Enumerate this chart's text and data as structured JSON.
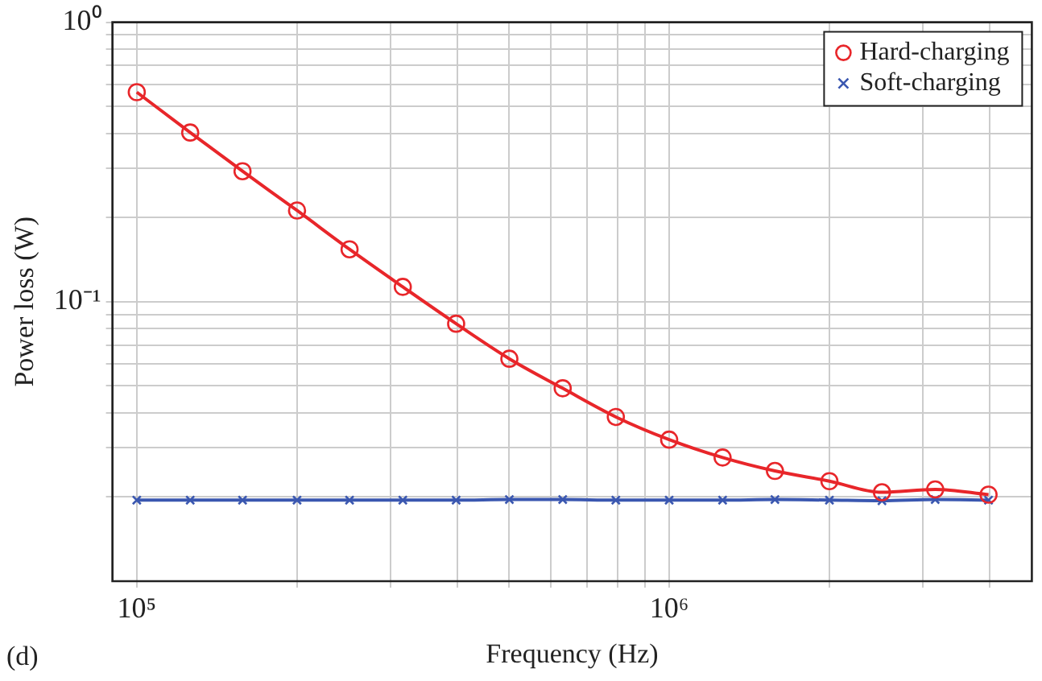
{
  "chart_data": {
    "type": "line",
    "xlabel": "Frequency (Hz)",
    "ylabel": "Power loss (W)",
    "annotations": [
      "(d)"
    ],
    "log": "xy",
    "grid": true,
    "legend": "top right",
    "xlim": [
      90000,
      4800000
    ],
    "ylim": [
      0.01,
      1
    ],
    "xticks": [
      {
        "value": 100000,
        "label": "10⁵"
      },
      {
        "value": 200000,
        "label": null
      },
      {
        "value": 300000,
        "label": null
      },
      {
        "value": 400000,
        "label": null
      },
      {
        "value": 500000,
        "label": null
      },
      {
        "value": 600000,
        "label": null
      },
      {
        "value": 700000,
        "label": null
      },
      {
        "value": 800000,
        "label": null
      },
      {
        "value": 900000,
        "label": null
      },
      {
        "value": 1000000,
        "label": "10⁶"
      },
      {
        "value": 2000000,
        "label": null
      },
      {
        "value": 3000000,
        "label": null
      },
      {
        "value": 4000000,
        "label": null
      }
    ],
    "yticks": [
      {
        "value": 0.02,
        "label": null
      },
      {
        "value": 0.03,
        "label": null
      },
      {
        "value": 0.04,
        "label": null
      },
      {
        "value": 0.05,
        "label": null
      },
      {
        "value": 0.06,
        "label": null
      },
      {
        "value": 0.07,
        "label": null
      },
      {
        "value": 0.08,
        "label": null
      },
      {
        "value": 0.09,
        "label": null
      },
      {
        "value": 0.1,
        "label": "10⁻¹"
      },
      {
        "value": 0.2,
        "label": null
      },
      {
        "value": 0.3,
        "label": null
      },
      {
        "value": 0.4,
        "label": null
      },
      {
        "value": 0.5,
        "label": null
      },
      {
        "value": 0.6,
        "label": null
      },
      {
        "value": 0.7,
        "label": null
      },
      {
        "value": 0.8,
        "label": null
      },
      {
        "value": 0.9,
        "label": null
      },
      {
        "value": 1,
        "label": "10⁰"
      }
    ],
    "x": [
      100000,
      126000,
      158000,
      200000,
      251000,
      316000,
      398000,
      501000,
      631000,
      794000,
      1000000,
      1260000,
      1580000,
      2000000,
      2510000,
      3160000,
      3980000
    ],
    "series": [
      {
        "name": "Hard-charging",
        "color": "#e8262a",
        "marker": "circle",
        "values": [
          0.562,
          0.403,
          0.293,
          0.212,
          0.154,
          0.113,
          0.0834,
          0.0625,
          0.049,
          0.0387,
          0.0321,
          0.0277,
          0.0248,
          0.0228,
          0.0208,
          0.0213,
          0.0204
        ]
      },
      {
        "name": "Soft-charging",
        "color": "#3a57b0",
        "marker": "cross",
        "values": [
          0.0195,
          0.0195,
          0.0195,
          0.0195,
          0.0195,
          0.0195,
          0.0195,
          0.0196,
          0.0196,
          0.0195,
          0.0195,
          0.0195,
          0.0196,
          0.0195,
          0.0194,
          0.0196,
          0.0195
        ]
      }
    ]
  }
}
